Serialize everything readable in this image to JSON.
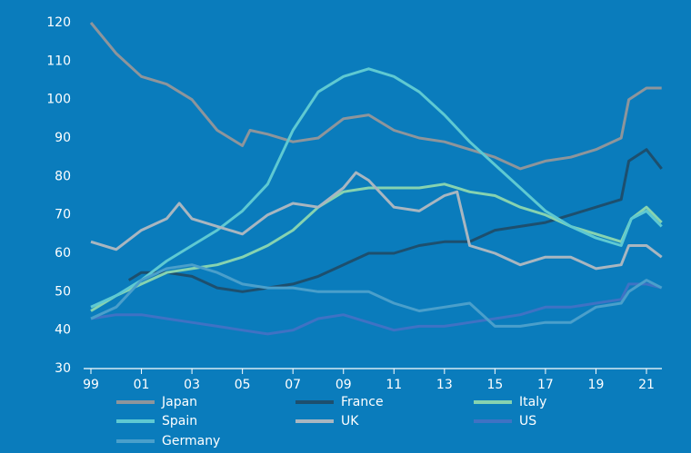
{
  "chart_data": {
    "type": "line",
    "xlim": [
      1999,
      2021.7
    ],
    "xticks": [
      {
        "value": 1999,
        "label": "99"
      },
      {
        "value": 2001,
        "label": "01"
      },
      {
        "value": 2003,
        "label": "03"
      },
      {
        "value": 2005,
        "label": "05"
      },
      {
        "value": 2007,
        "label": "07"
      },
      {
        "value": 2009,
        "label": "09"
      },
      {
        "value": 2011,
        "label": "11"
      },
      {
        "value": 2013,
        "label": "13"
      },
      {
        "value": 2015,
        "label": "15"
      },
      {
        "value": 2017,
        "label": "17"
      },
      {
        "value": 2019,
        "label": "19"
      },
      {
        "value": 2021,
        "label": "21"
      }
    ],
    "ylim": [
      30,
      120
    ],
    "yticks": [
      30,
      40,
      50,
      60,
      70,
      80,
      90,
      100,
      110,
      120
    ],
    "series": [
      {
        "name": "Japan",
        "color": "#8e959b",
        "x": [
          1999,
          2000,
          2001,
          2002,
          2003,
          2004,
          2005,
          2005.3,
          2006,
          2007,
          2008,
          2009,
          2010,
          2011,
          2012,
          2013,
          2014,
          2015,
          2016,
          2017,
          2018,
          2019,
          2020,
          2020.3,
          2021,
          2021.6
        ],
        "values": [
          120,
          112,
          106,
          104,
          100,
          92,
          88,
          92,
          91,
          89,
          90,
          95,
          96,
          92,
          90,
          89,
          87,
          85,
          82,
          84,
          85,
          87,
          90,
          100,
          103,
          103
        ]
      },
      {
        "name": "France",
        "color": "#1d4f6e",
        "x": [
          2000.5,
          2001,
          2002,
          2003,
          2004,
          2005,
          2006,
          2007,
          2008,
          2009,
          2010,
          2011,
          2012,
          2013,
          2014,
          2015,
          2016,
          2017,
          2018,
          2019,
          2020,
          2020.3,
          2021,
          2021.6
        ],
        "values": [
          53,
          55,
          55,
          54,
          51,
          50,
          51,
          52,
          54,
          57,
          60,
          60,
          62,
          63,
          63,
          66,
          67,
          68,
          70,
          72,
          74,
          84,
          87,
          82
        ]
      },
      {
        "name": "Italy",
        "color": "#86d3b0",
        "x": [
          1999,
          2000,
          2001,
          2002,
          2003,
          2004,
          2005,
          2006,
          2007,
          2008,
          2009,
          2010,
          2011,
          2012,
          2013,
          2014,
          2015,
          2016,
          2017,
          2018,
          2019,
          2020,
          2020.4,
          2021,
          2021.6
        ],
        "values": [
          45,
          49,
          52,
          55,
          56,
          57,
          59,
          62,
          66,
          72,
          76,
          77,
          77,
          77,
          78,
          76,
          75,
          72,
          70,
          67,
          65,
          63,
          69,
          72,
          68
        ]
      },
      {
        "name": "Spain",
        "color": "#5ec9d2",
        "x": [
          1999,
          2000,
          2001,
          2002,
          2003,
          2004,
          2005,
          2006,
          2007,
          2008,
          2009,
          2010,
          2011,
          2012,
          2013,
          2014,
          2015,
          2016,
          2017,
          2018,
          2019,
          2020,
          2020.4,
          2021,
          2021.6
        ],
        "values": [
          46,
          49,
          53,
          58,
          62,
          66,
          71,
          78,
          92,
          102,
          106,
          108,
          106,
          102,
          96,
          89,
          83,
          77,
          71,
          67,
          64,
          62,
          69,
          71,
          67
        ]
      },
      {
        "name": "UK",
        "color": "#a9b6c0",
        "x": [
          1999,
          2000,
          2001,
          2002,
          2002.5,
          2003,
          2004,
          2005,
          2006,
          2007,
          2008,
          2009,
          2009.5,
          2010,
          2011,
          2012,
          2013,
          2013.5,
          2014,
          2015,
          2016,
          2017,
          2018,
          2019,
          2020,
          2020.3,
          2021,
          2021.6
        ],
        "values": [
          63,
          61,
          66,
          69,
          73,
          69,
          67,
          65,
          70,
          73,
          72,
          77,
          81,
          79,
          72,
          71,
          75,
          76,
          62,
          60,
          57,
          59,
          59,
          56,
          57,
          62,
          62,
          59
        ]
      },
      {
        "name": "US",
        "color": "#3f72c4",
        "x": [
          1999,
          2000,
          2001,
          2002,
          2003,
          2004,
          2005,
          2006,
          2007,
          2008,
          2009,
          2010,
          2011,
          2012,
          2013,
          2014,
          2015,
          2016,
          2017,
          2018,
          2019,
          2020,
          2020.3,
          2021,
          2021.6
        ],
        "values": [
          43,
          44,
          44,
          43,
          42,
          41,
          40,
          39,
          40,
          43,
          44,
          42,
          40,
          41,
          41,
          42,
          43,
          44,
          46,
          46,
          47,
          48,
          52,
          52,
          51
        ]
      },
      {
        "name": "Germany",
        "color": "#4a9fcb",
        "x": [
          1999,
          2000,
          2001,
          2002,
          2003,
          2004,
          2005,
          2006,
          2007,
          2008,
          2009,
          2010,
          2011,
          2012,
          2013,
          2014,
          2015,
          2016,
          2017,
          2018,
          2019,
          2020,
          2020.3,
          2021,
          2021.6
        ],
        "values": [
          43,
          46,
          53,
          56,
          57,
          55,
          52,
          51,
          51,
          50,
          50,
          50,
          47,
          45,
          46,
          47,
          41,
          41,
          42,
          42,
          46,
          47,
          50,
          53,
          51
        ]
      }
    ]
  }
}
